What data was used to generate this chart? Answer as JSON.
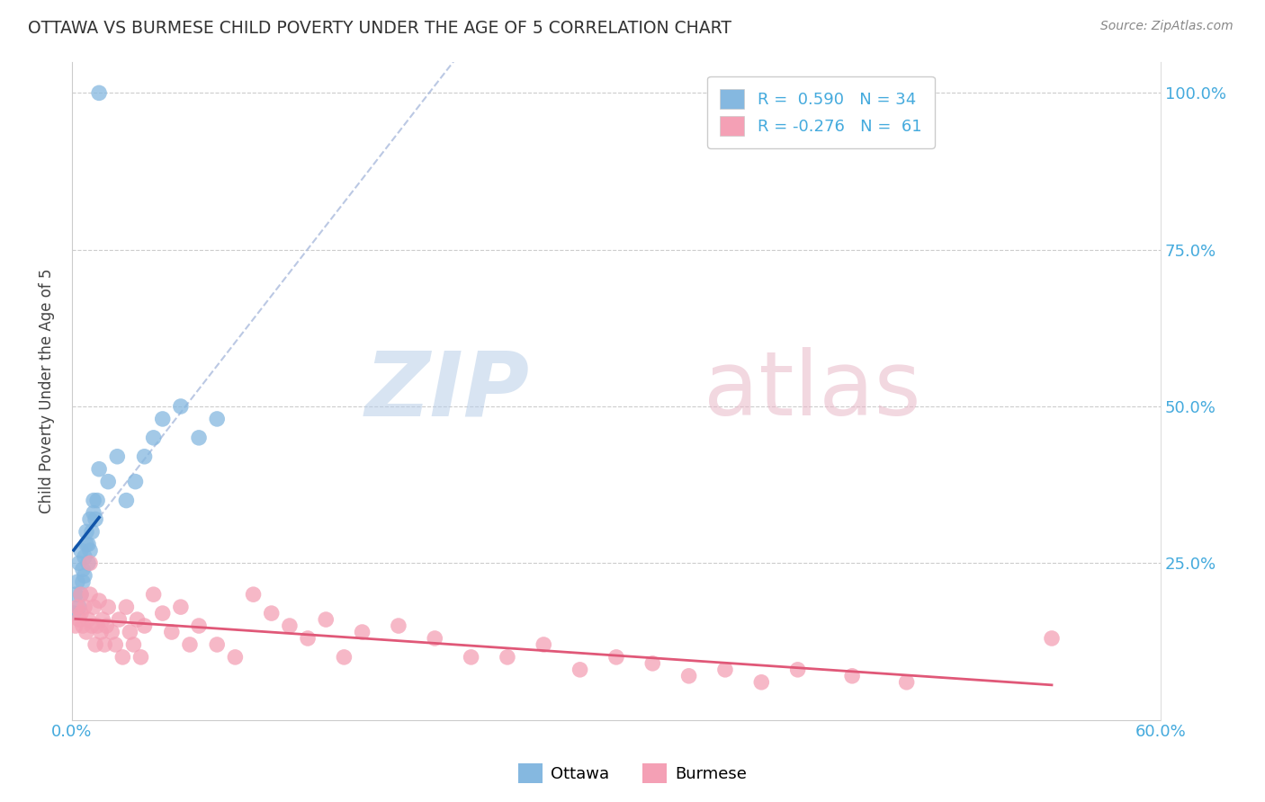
{
  "title": "OTTAWA VS BURMESE CHILD POVERTY UNDER THE AGE OF 5 CORRELATION CHART",
  "source": "Source: ZipAtlas.com",
  "ylabel": "Child Poverty Under the Age of 5",
  "xlim": [
    0.0,
    0.6
  ],
  "ylim": [
    0.0,
    1.05
  ],
  "ottawa_color": "#85b8e0",
  "burmese_color": "#f4a0b5",
  "ottawa_line_color": "#1155aa",
  "burmese_line_color": "#e05878",
  "dash_line_color": "#aabbdd",
  "r_ottawa": "0.590",
  "n_ottawa": "34",
  "r_burmese": "-0.276",
  "n_burmese": "61",
  "legend_label_ottawa": "Ottawa",
  "legend_label_burmese": "Burmese",
  "background_color": "#ffffff",
  "grid_color": "#cccccc",
  "ottawa_x": [
    0.001,
    0.002,
    0.003,
    0.004,
    0.004,
    0.005,
    0.005,
    0.006,
    0.006,
    0.007,
    0.007,
    0.008,
    0.008,
    0.009,
    0.009,
    0.01,
    0.01,
    0.011,
    0.012,
    0.013,
    0.014,
    0.015,
    0.02,
    0.025,
    0.03,
    0.035,
    0.04,
    0.045,
    0.05,
    0.06,
    0.07,
    0.08,
    0.015,
    0.012
  ],
  "ottawa_y": [
    0.17,
    0.2,
    0.22,
    0.18,
    0.25,
    0.2,
    0.27,
    0.24,
    0.22,
    0.26,
    0.23,
    0.28,
    0.3,
    0.25,
    0.28,
    0.27,
    0.32,
    0.3,
    0.33,
    0.32,
    0.35,
    0.4,
    0.38,
    0.42,
    0.35,
    0.38,
    0.42,
    0.45,
    0.48,
    0.5,
    0.45,
    0.48,
    1.0,
    0.35
  ],
  "burmese_x": [
    0.002,
    0.003,
    0.004,
    0.005,
    0.005,
    0.006,
    0.007,
    0.008,
    0.009,
    0.01,
    0.011,
    0.012,
    0.013,
    0.014,
    0.015,
    0.016,
    0.017,
    0.018,
    0.019,
    0.02,
    0.022,
    0.024,
    0.026,
    0.028,
    0.03,
    0.032,
    0.034,
    0.036,
    0.038,
    0.04,
    0.045,
    0.05,
    0.055,
    0.06,
    0.065,
    0.07,
    0.08,
    0.09,
    0.1,
    0.11,
    0.12,
    0.13,
    0.14,
    0.15,
    0.16,
    0.18,
    0.2,
    0.22,
    0.24,
    0.26,
    0.28,
    0.3,
    0.32,
    0.34,
    0.36,
    0.38,
    0.4,
    0.43,
    0.46,
    0.54,
    0.01
  ],
  "burmese_y": [
    0.15,
    0.18,
    0.16,
    0.2,
    0.17,
    0.15,
    0.18,
    0.14,
    0.16,
    0.2,
    0.15,
    0.18,
    0.12,
    0.15,
    0.19,
    0.14,
    0.16,
    0.12,
    0.15,
    0.18,
    0.14,
    0.12,
    0.16,
    0.1,
    0.18,
    0.14,
    0.12,
    0.16,
    0.1,
    0.15,
    0.2,
    0.17,
    0.14,
    0.18,
    0.12,
    0.15,
    0.12,
    0.1,
    0.2,
    0.17,
    0.15,
    0.13,
    0.16,
    0.1,
    0.14,
    0.15,
    0.13,
    0.1,
    0.1,
    0.12,
    0.08,
    0.1,
    0.09,
    0.07,
    0.08,
    0.06,
    0.08,
    0.07,
    0.06,
    0.13,
    0.25
  ]
}
